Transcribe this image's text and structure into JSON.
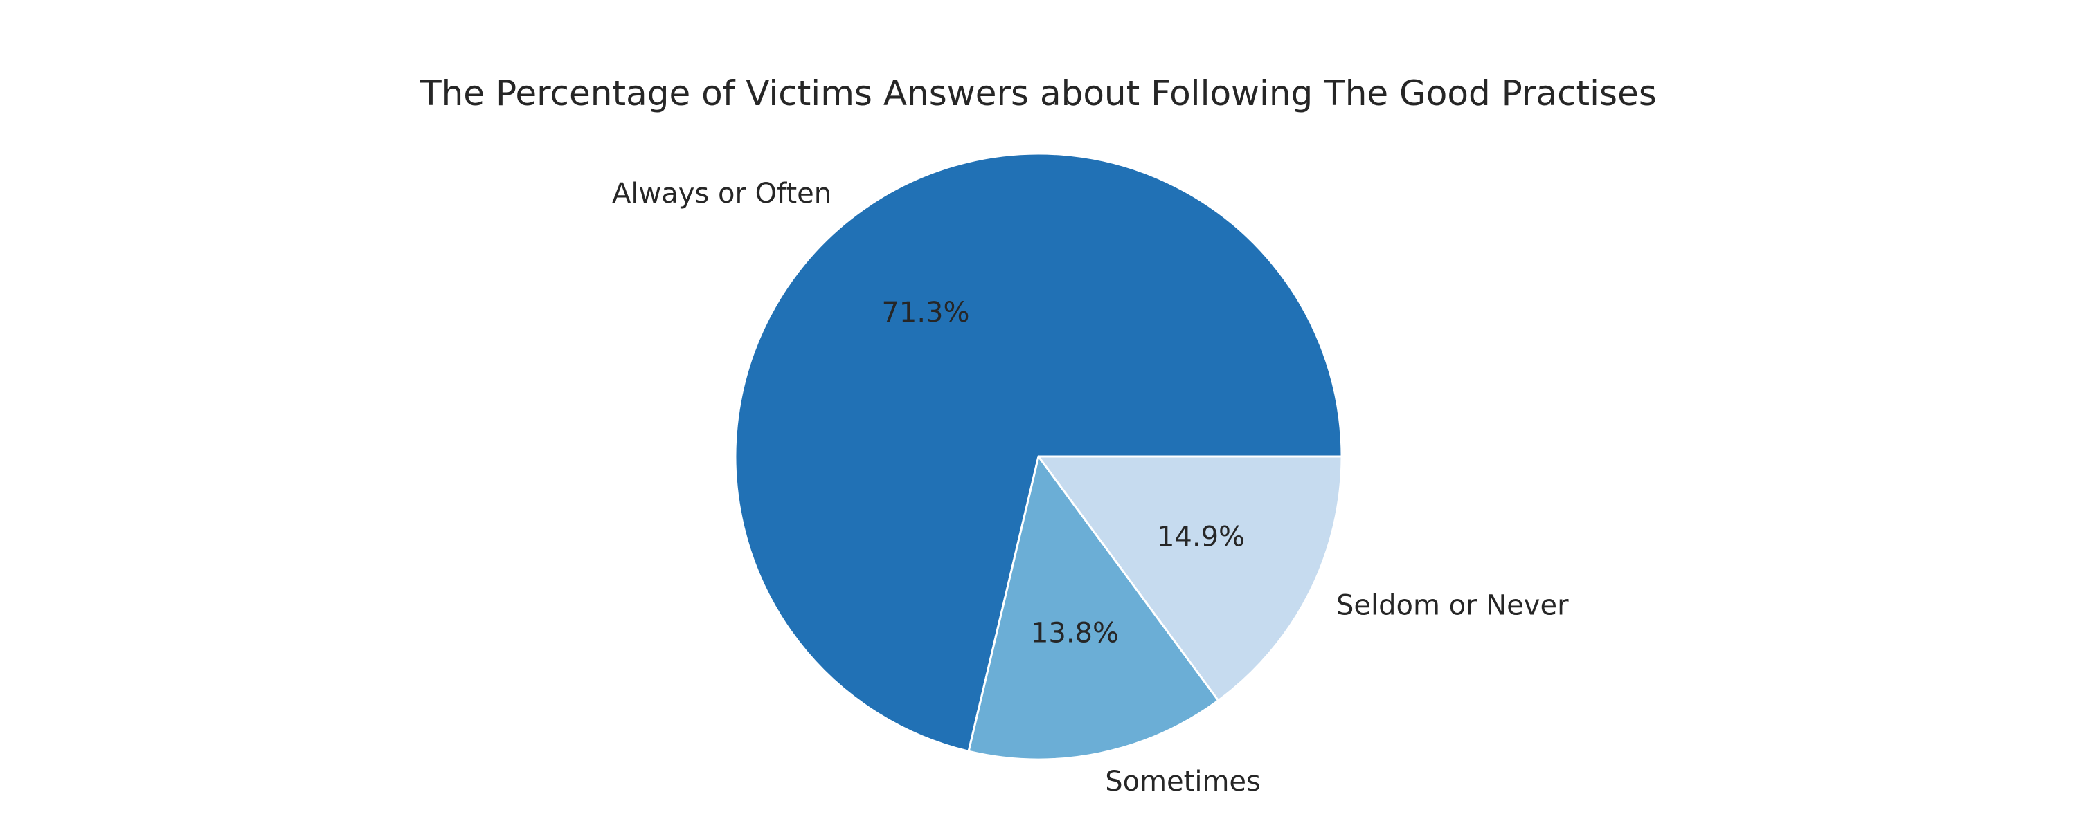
{
  "chart_data": {
    "type": "pie",
    "title": "The Percentage of Victims Answers about Following The Good Practises",
    "start_angle_deg": 0,
    "direction": "counterclockwise",
    "slices": [
      {
        "label": "Always or Often",
        "value": 71.3,
        "pct_label": "71.3%",
        "color": "#2171b5"
      },
      {
        "label": "Sometimes",
        "value": 13.8,
        "pct_label": "13.8%",
        "color": "#6baed6"
      },
      {
        "label": "Seldom or Never",
        "value": 14.9,
        "pct_label": "14.9%",
        "color": "#c6dbef"
      }
    ]
  }
}
